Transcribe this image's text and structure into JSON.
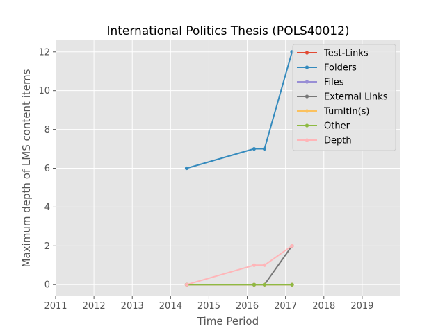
{
  "chart_data": {
    "type": "line",
    "title": "International Politics Thesis (POLS40012)",
    "xlabel": "Time Period",
    "ylabel": "Maximum depth of LMS content items",
    "xlim": [
      2011,
      2020
    ],
    "ylim": [
      -0.6,
      12.6
    ],
    "xticks": [
      2011,
      2012,
      2013,
      2014,
      2015,
      2016,
      2017,
      2018,
      2019
    ],
    "yticks": [
      0,
      2,
      4,
      6,
      8,
      10,
      12
    ],
    "grid": true,
    "legend_position": "top-right",
    "series": [
      {
        "name": "Test-Links",
        "color": "#E24A33",
        "x": [
          2014.42,
          2016.18,
          2016.45,
          2017.17
        ],
        "y": [
          0,
          0,
          0,
          0
        ]
      },
      {
        "name": "Folders",
        "color": "#348ABD",
        "x": [
          2014.42,
          2016.18,
          2016.45,
          2017.17
        ],
        "y": [
          6,
          7,
          7,
          12
        ]
      },
      {
        "name": "Files",
        "color": "#988ED5",
        "x": [
          2014.42,
          2016.18,
          2016.45,
          2017.17
        ],
        "y": [
          0,
          0,
          0,
          0
        ]
      },
      {
        "name": "External Links",
        "color": "#777777",
        "x": [
          2014.42,
          2016.18,
          2016.45,
          2017.17
        ],
        "y": [
          0,
          0,
          0,
          2
        ]
      },
      {
        "name": "TurnItIn(s)",
        "color": "#FBC15E",
        "x": [
          2014.42,
          2016.18,
          2016.45,
          2017.17
        ],
        "y": [
          0,
          0,
          0,
          0
        ]
      },
      {
        "name": "Other",
        "color": "#8EBA42",
        "x": [
          2014.42,
          2016.18,
          2016.45,
          2017.17
        ],
        "y": [
          0,
          0,
          0,
          0
        ]
      },
      {
        "name": "Depth",
        "color": "#FFB5B8",
        "x": [
          2014.42,
          2016.18,
          2016.45,
          2017.17
        ],
        "y": [
          0,
          1,
          1,
          2
        ]
      }
    ]
  }
}
